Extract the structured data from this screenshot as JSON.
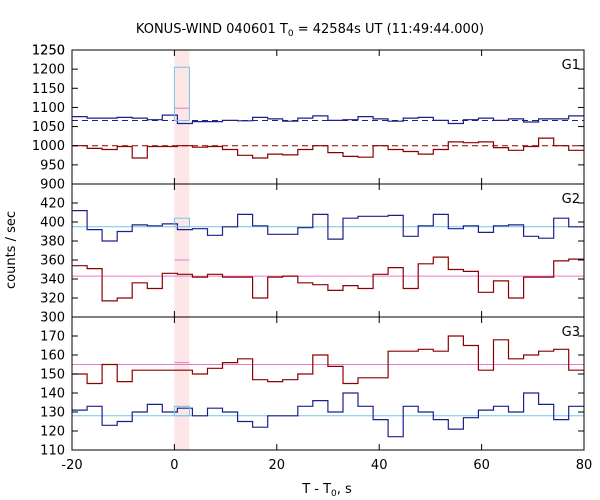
{
  "chart_data": {
    "type": "line",
    "title": {
      "main": "KONUS-WIND 040601 T",
      "sub": "0",
      "rest": " = 42584s UT (11:49:44.000)"
    },
    "xlabel": {
      "main": "T - T",
      "sub": "0",
      "rest": ", s"
    },
    "ylabel": "counts / sec",
    "xlim": [
      -20,
      80
    ],
    "xticks": [
      -20,
      0,
      20,
      40,
      60,
      80
    ],
    "highlight_band": {
      "x0": 0,
      "x1": 2.94,
      "color": "#fde6e6"
    },
    "colors": {
      "blue": "#1f1f8a",
      "red": "#8b0000",
      "lightblue": "#74c6e8",
      "pink": "#e77cc6",
      "band": "#fde6e6",
      "dashed_blue": "#1f1f8a",
      "dashed_red": "#8b0000"
    },
    "panels": [
      {
        "label": "G1",
        "ylim": [
          900,
          1250
        ],
        "yticks": [
          900,
          950,
          1000,
          1050,
          1100,
          1150,
          1200,
          1250
        ],
        "bin_start": -20,
        "bin_width": 2.94,
        "series": [
          {
            "color": "blue",
            "values": [
              1076,
              1072,
              1072,
              1074,
              1072,
              1068,
              1080,
              1058,
              1063,
              1063,
              1066,
              1065,
              1074,
              1070,
              1064,
              1072,
              1078,
              1066,
              1068,
              1076,
              1070,
              1064,
              1072,
              1074,
              1066,
              1058,
              1068,
              1072,
              1066,
              1070,
              1062,
              1070,
              1070,
              1078
            ]
          },
          {
            "color": "red",
            "values": [
              1000,
              993,
              990,
              998,
              968,
              998,
              998,
              1000,
              996,
              998,
              990,
              975,
              968,
              978,
              976,
              990,
              1000,
              982,
              972,
              970,
              1000,
              990,
              985,
              978,
              990,
              1010,
              1008,
              1010,
              995,
              988,
              998,
              1020,
              1000,
              988
            ]
          }
        ],
        "burst": {
          "blue": 1205,
          "red": 1098
        },
        "mean_lines": [
          {
            "color": "dashed_blue",
            "value": 1066,
            "dashed": true
          },
          {
            "color": "dashed_red",
            "value": 1000,
            "dashed": true
          }
        ]
      },
      {
        "label": "G2",
        "ylim": [
          300,
          440
        ],
        "yticks": [
          300,
          320,
          340,
          360,
          380,
          400,
          420
        ],
        "bin_start": -20,
        "bin_width": 2.94,
        "series": [
          {
            "color": "blue",
            "values": [
              412,
              392,
              380,
              390,
              397,
              396,
              398,
              392,
              393,
              386,
              395,
              408,
              396,
              387,
              387,
              394,
              408,
              382,
              404,
              406,
              406,
              407,
              385,
              396,
              408,
              393,
              396,
              389,
              396,
              397,
              385,
              383,
              404,
              395
            ]
          },
          {
            "color": "red",
            "values": [
              354,
              351,
              317,
              320,
              336,
              330,
              346,
              345,
              342,
              345,
              342,
              342,
              320,
              342,
              343,
              336,
              334,
              328,
              333,
              330,
              345,
              352,
              330,
              356,
              363,
              350,
              348,
              326,
              338,
              320,
              342,
              342,
              359,
              361
            ]
          }
        ],
        "burst": {
          "blue": 404,
          "red": 360
        },
        "mean_lines": [
          {
            "color": "lightblue",
            "value": 395,
            "dashed": false
          },
          {
            "color": "pink",
            "value": 343,
            "dashed": false
          }
        ]
      },
      {
        "label": "G3",
        "ylim": [
          110,
          180
        ],
        "yticks": [
          110,
          120,
          130,
          140,
          150,
          160,
          170
        ],
        "bin_start": -20,
        "bin_width": 2.94,
        "series": [
          {
            "color": "blue",
            "values": [
              131,
              133,
              123,
              125,
              130,
              134,
              130,
              132,
              128,
              132,
              130,
              125,
              122,
              128,
              128,
              133,
              136,
              130,
              140,
              133,
              126,
              117,
              133,
              130,
              126,
              121,
              127,
              131,
              133,
              130,
              140,
              134,
              126,
              133
            ]
          },
          {
            "color": "red",
            "values": [
              150,
              145,
              155,
              146,
              152,
              152,
              152,
              152,
              150,
              153,
              156,
              158,
              147,
              146,
              147,
              150,
              160,
              154,
              145,
              148,
              148,
              162,
              162,
              163,
              162,
              170,
              165,
              152,
              168,
              158,
              160,
              162,
              163,
              152
            ]
          }
        ],
        "burst": {
          "blue": 133,
          "red": 156
        },
        "mean_lines": [
          {
            "color": "lightblue",
            "value": 128,
            "dashed": false
          },
          {
            "color": "pink",
            "value": 155,
            "dashed": false
          }
        ]
      }
    ],
    "burst_bin": {
      "x0": 0,
      "x1": 2.94
    }
  }
}
